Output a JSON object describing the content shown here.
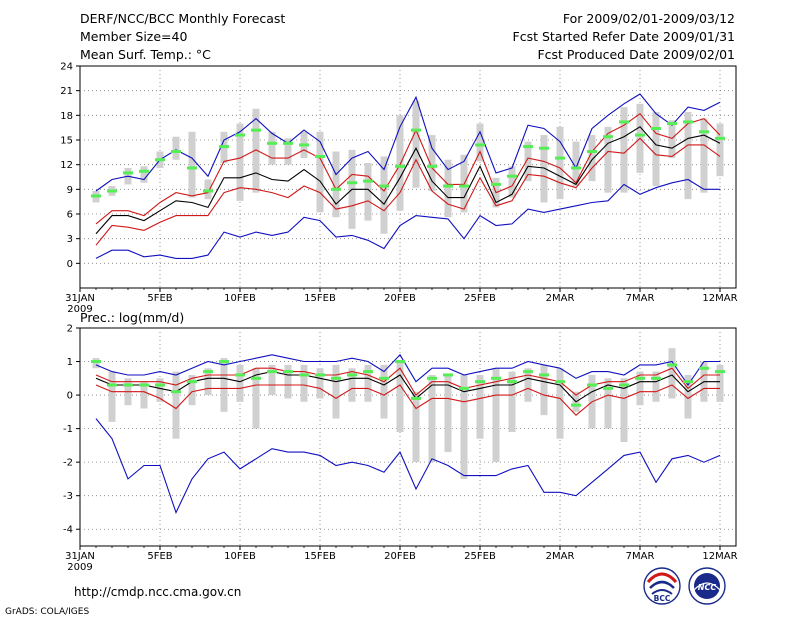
{
  "header": {
    "title": "DERF/NCC/BCC Monthly Forecast",
    "member_size": "Member Size=40",
    "variable_top": "Mean Surf. Temp.: °C",
    "period": "For 2009/02/01-2009/03/12",
    "started": "Fcst Started Refer Date 2009/01/31",
    "produced": "Fcst Produced Date 2009/02/01"
  },
  "footer": {
    "url": "http://cmdp.ncc.cma.gov.cn",
    "grads": "GrADS: COLA/IGES",
    "logo_bcc": "BCC",
    "logo_ncc": "NCC"
  },
  "colors": {
    "box": "#d0d0d0",
    "obs": "#55ee55",
    "mean": "#000000",
    "quartile": "#d01818",
    "extreme": "#1010c0",
    "grid": "#808080"
  },
  "chart_data": [
    {
      "type": "line",
      "title": "Mean Surf. Temp.: °C",
      "ylim": [
        -3,
        24
      ],
      "yticks": [
        0,
        3,
        6,
        9,
        12,
        15,
        18,
        21,
        24
      ],
      "xticks": [
        {
          "day": 0,
          "label": "31JAN",
          "sub": "2009"
        },
        {
          "day": 5,
          "label": "5FEB"
        },
        {
          "day": 10,
          "label": "10FEB"
        },
        {
          "day": 15,
          "label": "15FEB"
        },
        {
          "day": 20,
          "label": "20FEB"
        },
        {
          "day": 25,
          "label": "25FEB"
        },
        {
          "day": 30,
          "label": "2MAR"
        },
        {
          "day": 35,
          "label": "7MAR"
        },
        {
          "day": 40,
          "label": "12MAR"
        }
      ],
      "days": [
        1,
        2,
        3,
        4,
        5,
        6,
        7,
        8,
        9,
        10,
        11,
        12,
        13,
        14,
        15,
        16,
        17,
        18,
        19,
        20,
        21,
        22,
        23,
        24,
        25,
        26,
        27,
        28,
        29,
        30,
        31,
        32,
        33,
        34,
        35,
        36,
        37,
        38,
        39,
        40
      ],
      "series": [
        {
          "name": "max",
          "role": "extreme",
          "values": [
            8.8,
            10.2,
            10.6,
            10.2,
            12.6,
            13.8,
            12.8,
            10.6,
            15.0,
            16.0,
            17.6,
            15.8,
            14.6,
            16.2,
            14.8,
            10.8,
            12.8,
            13.6,
            11.4,
            16.6,
            20.2,
            14.0,
            11.4,
            12.4,
            16.0,
            11.0,
            11.6,
            16.8,
            16.4,
            14.8,
            11.6,
            16.4,
            18.0,
            19.4,
            20.6,
            18.2,
            16.8,
            19.0,
            18.6,
            19.6
          ]
        },
        {
          "name": "upper quartile",
          "role": "quartile",
          "values": [
            4.8,
            6.4,
            6.4,
            5.8,
            7.4,
            8.6,
            8.2,
            8.6,
            12.4,
            12.8,
            13.8,
            12.8,
            12.8,
            13.8,
            12.8,
            9.0,
            10.8,
            10.6,
            8.8,
            12.0,
            16.2,
            11.6,
            9.6,
            9.6,
            13.6,
            8.6,
            9.4,
            12.8,
            12.4,
            11.6,
            9.8,
            13.6,
            15.8,
            16.8,
            18.2,
            15.8,
            15.2,
            17.0,
            17.6,
            15.6
          ]
        },
        {
          "name": "mean",
          "role": "mean",
          "values": [
            3.6,
            5.8,
            5.8,
            5.2,
            6.4,
            7.6,
            7.4,
            6.8,
            10.4,
            10.4,
            11.0,
            10.2,
            10.0,
            11.4,
            10.0,
            7.2,
            9.0,
            9.0,
            7.2,
            10.4,
            14.0,
            10.0,
            8.0,
            8.0,
            11.8,
            7.4,
            8.4,
            11.8,
            11.6,
            10.6,
            9.6,
            12.6,
            14.6,
            15.4,
            16.6,
            14.4,
            14.0,
            15.2,
            15.6,
            14.6
          ]
        },
        {
          "name": "lower quartile",
          "role": "quartile",
          "values": [
            2.2,
            4.6,
            4.4,
            4.0,
            5.0,
            5.8,
            5.8,
            5.8,
            8.6,
            9.2,
            9.0,
            8.6,
            8.0,
            9.4,
            8.6,
            6.6,
            7.0,
            7.6,
            6.4,
            8.6,
            12.6,
            8.8,
            7.2,
            6.6,
            10.4,
            7.0,
            7.6,
            10.8,
            10.6,
            9.8,
            9.2,
            11.6,
            13.6,
            13.4,
            15.2,
            13.2,
            13.0,
            14.4,
            14.4,
            13.0
          ]
        },
        {
          "name": "min",
          "role": "extreme",
          "values": [
            0.6,
            1.6,
            1.6,
            0.8,
            1.0,
            0.6,
            0.6,
            1.0,
            3.8,
            3.2,
            3.8,
            3.4,
            3.8,
            5.6,
            5.2,
            3.2,
            3.4,
            2.8,
            1.8,
            4.6,
            5.8,
            5.6,
            5.4,
            3.0,
            5.8,
            4.6,
            4.8,
            6.6,
            6.2,
            6.6,
            7.0,
            7.4,
            7.6,
            9.6,
            8.4,
            9.2,
            9.8,
            10.2,
            9.0,
            9.0
          ]
        },
        {
          "name": "observed",
          "role": "obs",
          "values": [
            8.2,
            8.8,
            11.0,
            11.2,
            12.6,
            13.6,
            11.6,
            8.8,
            14.2,
            15.6,
            16.2,
            14.6,
            14.6,
            14.4,
            13.0,
            9.0,
            9.8,
            10.0,
            9.4,
            11.8,
            16.2,
            11.8,
            9.4,
            9.4,
            14.4,
            9.6,
            10.6,
            14.2,
            14.0,
            12.8,
            11.6,
            13.6,
            15.4,
            17.2,
            15.6,
            16.4,
            17.0,
            17.2,
            16.0,
            15.2
          ]
        }
      ],
      "boxes": {
        "low": [
          7.4,
          8.2,
          9.6,
          9.8,
          11.6,
          12.6,
          8.0,
          7.8,
          12.2,
          7.6,
          8.6,
          12.0,
          12.0,
          12.8,
          6.2,
          5.6,
          4.2,
          5.2,
          3.6,
          6.4,
          9.2,
          8.8,
          5.6,
          6.2,
          12.4,
          6.8,
          8.0,
          10.0,
          7.4,
          7.8,
          9.4,
          10.0,
          8.6,
          8.6,
          11.0,
          9.4,
          12.8,
          7.8,
          8.6,
          10.6
        ],
        "high": [
          8.8,
          9.4,
          11.6,
          11.8,
          13.6,
          15.4,
          16.0,
          10.2,
          16.0,
          17.0,
          18.8,
          16.0,
          15.2,
          16.0,
          16.0,
          13.6,
          13.8,
          12.2,
          13.0,
          18.0,
          19.8,
          15.6,
          12.6,
          13.2,
          17.0,
          10.4,
          11.8,
          14.8,
          15.6,
          16.6,
          14.8,
          15.6,
          16.6,
          19.0,
          19.4,
          18.4,
          17.4,
          18.4,
          17.6,
          17.0
        ]
      }
    },
    {
      "type": "line",
      "title": "Prec.: log(mm/d)",
      "ylim": [
        -4.5,
        2
      ],
      "yticks": [
        -4,
        -3,
        -2,
        -1,
        0,
        1,
        2
      ],
      "xticks": [
        {
          "day": 0,
          "label": "31JAN",
          "sub": "2009"
        },
        {
          "day": 5,
          "label": "5FEB"
        },
        {
          "day": 10,
          "label": "10FEB"
        },
        {
          "day": 15,
          "label": "15FEB"
        },
        {
          "day": 20,
          "label": "20FEB"
        },
        {
          "day": 25,
          "label": "25FEB"
        },
        {
          "day": 30,
          "label": "2MAR"
        },
        {
          "day": 35,
          "label": "7MAR"
        },
        {
          "day": 40,
          "label": "12MAR"
        }
      ],
      "days": [
        1,
        2,
        3,
        4,
        5,
        6,
        7,
        8,
        9,
        10,
        11,
        12,
        13,
        14,
        15,
        16,
        17,
        18,
        19,
        20,
        21,
        22,
        23,
        24,
        25,
        26,
        27,
        28,
        29,
        30,
        31,
        32,
        33,
        34,
        35,
        36,
        37,
        38,
        39,
        40
      ],
      "series": [
        {
          "name": "max",
          "role": "extreme",
          "values": [
            0.9,
            0.7,
            0.6,
            0.6,
            0.7,
            0.6,
            0.8,
            1.0,
            0.9,
            1.0,
            1.1,
            1.2,
            1.1,
            1.0,
            1.0,
            1.0,
            1.1,
            1.0,
            0.7,
            1.2,
            0.4,
            0.8,
            0.8,
            0.6,
            0.7,
            0.8,
            0.8,
            1.0,
            0.9,
            0.8,
            0.5,
            0.7,
            0.7,
            0.6,
            0.9,
            0.9,
            1.0,
            0.3,
            1.0,
            1.0
          ]
        },
        {
          "name": "upper quartile",
          "role": "quartile",
          "values": [
            0.6,
            0.4,
            0.4,
            0.4,
            0.4,
            0.3,
            0.5,
            0.6,
            0.6,
            0.6,
            0.8,
            0.8,
            0.7,
            0.7,
            0.6,
            0.6,
            0.7,
            0.6,
            0.4,
            0.8,
            0.0,
            0.4,
            0.4,
            0.2,
            0.3,
            0.4,
            0.5,
            0.6,
            0.5,
            0.4,
            0.0,
            0.3,
            0.4,
            0.4,
            0.6,
            0.6,
            0.8,
            0.2,
            0.6,
            0.6
          ]
        },
        {
          "name": "mean",
          "role": "mean",
          "values": [
            0.5,
            0.3,
            0.3,
            0.3,
            0.2,
            0.1,
            0.4,
            0.5,
            0.5,
            0.4,
            0.6,
            0.7,
            0.6,
            0.6,
            0.5,
            0.4,
            0.5,
            0.5,
            0.3,
            0.6,
            -0.1,
            0.3,
            0.3,
            0.1,
            0.2,
            0.3,
            0.3,
            0.5,
            0.4,
            0.3,
            -0.2,
            0.1,
            0.3,
            0.2,
            0.4,
            0.4,
            0.6,
            0.1,
            0.4,
            0.4
          ]
        },
        {
          "name": "lower quartile",
          "role": "quartile",
          "values": [
            0.3,
            0.1,
            0.1,
            0.1,
            -0.1,
            -0.4,
            0.1,
            0.2,
            0.2,
            0.2,
            0.3,
            0.3,
            0.3,
            0.3,
            0.2,
            -0.1,
            0.2,
            0.2,
            0.0,
            0.3,
            -0.4,
            -0.1,
            -0.1,
            -0.2,
            -0.1,
            0.0,
            0.0,
            0.2,
            0.0,
            -0.1,
            -0.6,
            -0.2,
            0.0,
            -0.1,
            0.1,
            0.1,
            0.3,
            -0.1,
            0.2,
            0.2
          ]
        },
        {
          "name": "min",
          "role": "extreme",
          "values": [
            -0.7,
            -1.3,
            -2.5,
            -2.1,
            -2.1,
            -3.5,
            -2.5,
            -1.9,
            -1.7,
            -2.2,
            -1.9,
            -1.6,
            -1.7,
            -1.7,
            -1.8,
            -2.1,
            -2.0,
            -2.1,
            -2.3,
            -1.7,
            -2.8,
            -1.9,
            -2.1,
            -2.4,
            -2.4,
            -2.4,
            -2.2,
            -2.1,
            -2.9,
            -2.9,
            -3.0,
            -2.6,
            -2.2,
            -1.8,
            -1.7,
            -2.6,
            -1.9,
            -1.8,
            -2.0,
            -1.8
          ]
        },
        {
          "name": "observed",
          "role": "obs",
          "values": [
            1.0,
            0.3,
            0.3,
            0.3,
            0.3,
            0.1,
            0.4,
            0.7,
            1.0,
            0.6,
            0.5,
            0.7,
            0.7,
            0.6,
            0.6,
            0.5,
            0.6,
            0.7,
            0.5,
            1.0,
            -0.1,
            0.5,
            0.6,
            0.2,
            0.4,
            0.5,
            0.4,
            0.7,
            0.6,
            0.4,
            -0.3,
            0.3,
            0.2,
            0.3,
            0.5,
            0.5,
            0.9,
            0.4,
            0.8,
            0.7
          ]
        }
      ],
      "boxes": {
        "low": [
          0.8,
          -0.8,
          -0.3,
          -0.4,
          -0.2,
          -1.3,
          -0.3,
          0.0,
          -0.5,
          -0.2,
          -1.0,
          0.0,
          -0.1,
          -0.2,
          -0.1,
          -0.7,
          -0.2,
          -0.2,
          -0.7,
          -1.1,
          -2.0,
          -2.0,
          -1.7,
          -2.5,
          -1.3,
          -2.0,
          -1.1,
          -0.2,
          -0.6,
          -1.3,
          -0.5,
          -1.0,
          -1.0,
          -1.4,
          -0.3,
          -0.2,
          -0.1,
          -0.7,
          -0.2,
          -0.2
        ],
        "high": [
          1.1,
          0.7,
          0.5,
          0.4,
          0.5,
          0.7,
          0.6,
          0.8,
          1.1,
          0.9,
          0.8,
          0.9,
          0.9,
          0.9,
          0.8,
          0.9,
          0.8,
          0.9,
          0.9,
          1.0,
          0.1,
          0.6,
          0.6,
          0.6,
          0.6,
          0.8,
          0.7,
          0.8,
          0.9,
          0.8,
          0.1,
          0.6,
          0.5,
          0.5,
          0.7,
          0.7,
          1.4,
          0.6,
          1.0,
          0.9
        ]
      }
    }
  ]
}
